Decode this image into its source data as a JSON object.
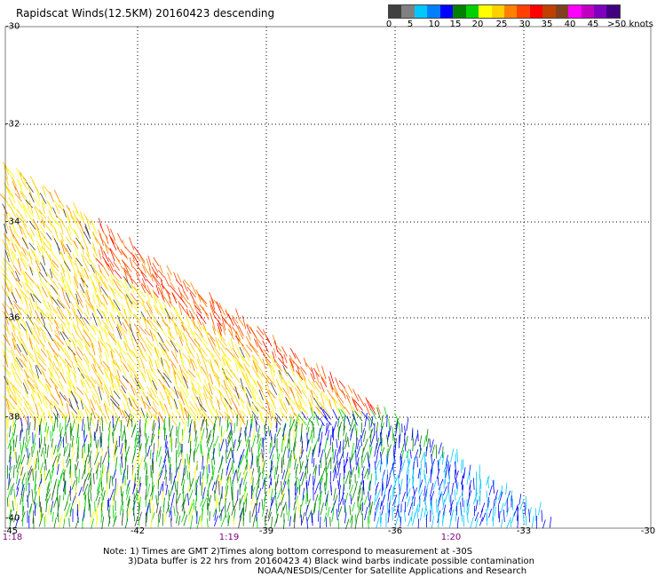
{
  "title": "Rapidscat Winds(12.5KM) 20160423 descending",
  "legend": {
    "colors": [
      "#404040",
      "#808080",
      "#00c8ff",
      "#0080ff",
      "#0000ff",
      "#008000",
      "#00d000",
      "#ffff00",
      "#ffd000",
      "#ff8000",
      "#ff4000",
      "#ff0000",
      "#c04000",
      "#804020",
      "#ff00ff",
      "#c000c0",
      "#8000c0",
      "#400080"
    ],
    "labels": [
      "0",
      "5",
      "10",
      "15",
      "20",
      "25",
      "30",
      "35",
      "40",
      "45",
      ">50 knots"
    ]
  },
  "map": {
    "latitudes": [
      "-30",
      "-32",
      "-34",
      "-36",
      "-38",
      "-40"
    ],
    "longitudes": [
      "-45",
      "-42",
      "-39",
      "-36",
      "-33",
      "-30"
    ],
    "times": [
      "1:18",
      "1:19",
      "1:20"
    ]
  },
  "notes": {
    "line1": "Note: 1) Times are GMT 2)Times along bottom correspond to measurement at -30S",
    "line2": "3)Data buffer is 22 hrs from 20160423 4) Black wind barbs indicate possible contamination",
    "line3": "NOAA/NESDIS/Center for Satellite Applications and Research"
  }
}
